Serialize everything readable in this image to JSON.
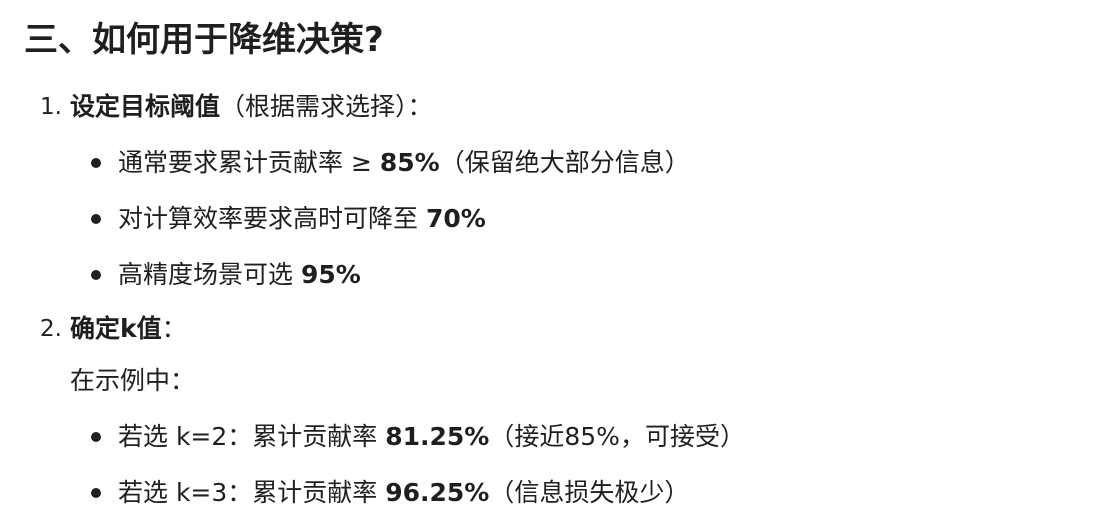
{
  "heading": "三、如何用于降维决策?",
  "sections": [
    {
      "number": "1.",
      "title": "设定目标阈值",
      "suffix": "（根据需求选择）：",
      "bullets": [
        {
          "pre": "通常要求累计贡献率 ≥ ",
          "bold": "85%",
          "post": "（保留绝大部分信息）"
        },
        {
          "pre": "对计算效率要求高时可降至 ",
          "bold": "70%",
          "post": ""
        },
        {
          "pre": "高精度场景可选 ",
          "bold": "95%",
          "post": ""
        }
      ]
    },
    {
      "number": "2.",
      "title": "确定k值",
      "suffix": "：",
      "subtext": "在示例中：",
      "bullets": [
        {
          "pre": "若选 k=2：累计贡献率 ",
          "bold": "81.25%",
          "post": "（接近85%，可接受）"
        },
        {
          "pre": "若选 k=3：累计贡献率 ",
          "bold": "96.25%",
          "post": "（信息损失极少）"
        }
      ]
    }
  ]
}
